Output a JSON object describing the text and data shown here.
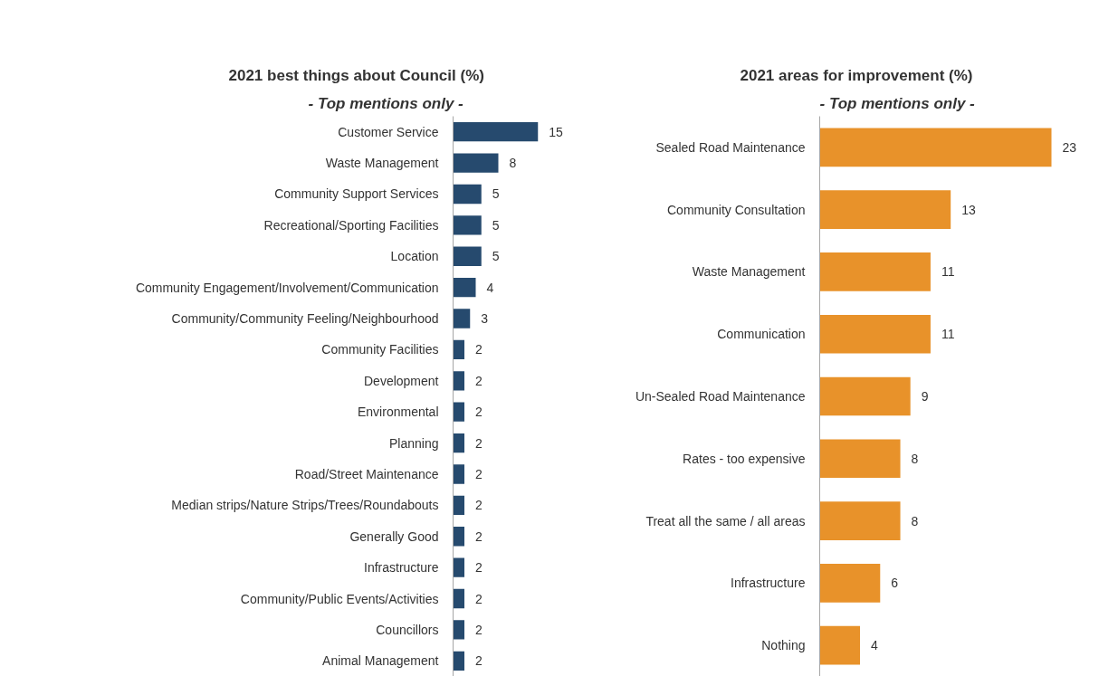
{
  "chart_data": [
    {
      "type": "bar",
      "orientation": "horizontal",
      "title": "2021 best things about Council (%)",
      "subtitle": "- Top mentions only -",
      "categories": [
        "Customer Service",
        "Waste Management",
        "Community Support Services",
        "Recreational/Sporting Facilities",
        "Location",
        "Community Engagement/Involvement/Communication",
        "Community/Community Feeling/Neighbourhood",
        "Community Facilities",
        "Development",
        "Environmental",
        "Planning",
        "Road/Street Maintenance",
        "Median strips/Nature Strips/Trees/Roundabouts",
        "Generally Good",
        "Infrastructure",
        "Community/Public Events/Activities",
        "Councillors",
        "Animal Management"
      ],
      "values": [
        15,
        8,
        5,
        5,
        5,
        4,
        3,
        2,
        2,
        2,
        2,
        2,
        2,
        2,
        2,
        2,
        2,
        2
      ],
      "color": "#264a6e",
      "data_labels": true,
      "grid": false
    },
    {
      "type": "bar",
      "orientation": "horizontal",
      "title": "2021 areas for improvement (%)",
      "subtitle": "- Top mentions only -",
      "categories": [
        "Sealed Road Maintenance",
        "Community Consultation",
        "Waste Management",
        "Communication",
        "Un-Sealed Road Maintenance",
        "Rates - too expensive",
        "Treat all the same / all areas",
        "Infrastructure",
        "Nothing"
      ],
      "values": [
        23,
        13,
        11,
        11,
        9,
        8,
        8,
        6,
        4
      ],
      "color": "#e8922a",
      "data_labels": true,
      "grid": false
    }
  ]
}
